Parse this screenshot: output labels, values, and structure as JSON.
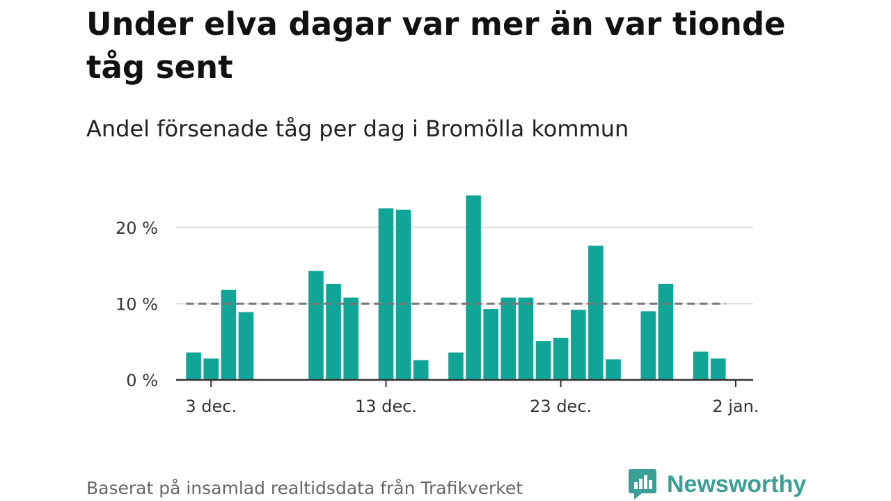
{
  "title": "Under elva dagar var mer än var tionde tåg sent",
  "subtitle": "Andel försenade tåg per dag i Bromölla kommun",
  "source": "Baserat på insamlad realtidsdata från Trafikverket",
  "brand": {
    "name": "Newsworthy",
    "icon": "newsworthy-logo-icon",
    "color": "#3a9f95"
  },
  "colors": {
    "bar": "#10a597",
    "reference": "#777777",
    "grid": "#dddddd",
    "axis": "#333333",
    "text": "#333333"
  },
  "chart_data": {
    "type": "bar",
    "title": "Under elva dagar var mer än var tionde tåg sent",
    "subtitle": "Andel försenade tåg per dag i Bromölla kommun",
    "x_unit": "day",
    "x_ticks": [
      {
        "x": "2023-12-03",
        "label": "3 dec."
      },
      {
        "x": "2023-12-13",
        "label": "13 dec."
      },
      {
        "x": "2023-12-23",
        "label": "23 dec."
      },
      {
        "x": "2024-01-02",
        "label": "2 jan."
      }
    ],
    "xlim": [
      "2023-12-01",
      "2024-01-03"
    ],
    "y_ticks": [
      {
        "value": 0,
        "label": "0 %"
      },
      {
        "value": 10,
        "label": "10 %"
      },
      {
        "value": 20,
        "label": "20 %"
      }
    ],
    "ylim": [
      0,
      25
    ],
    "y_unit": "%",
    "grid": true,
    "reference_line": {
      "value": 10,
      "style": "dashed"
    },
    "series": [
      {
        "points": [
          {
            "x": "2023-12-02",
            "y": 3.6
          },
          {
            "x": "2023-12-03",
            "y": 2.8
          },
          {
            "x": "2023-12-04",
            "y": 11.8
          },
          {
            "x": "2023-12-05",
            "y": 8.9
          },
          {
            "x": "2023-12-09",
            "y": 14.3
          },
          {
            "x": "2023-12-10",
            "y": 12.6
          },
          {
            "x": "2023-12-11",
            "y": 10.8
          },
          {
            "x": "2023-12-13",
            "y": 22.5
          },
          {
            "x": "2023-12-14",
            "y": 22.3
          },
          {
            "x": "2023-12-15",
            "y": 2.6
          },
          {
            "x": "2023-12-17",
            "y": 3.6
          },
          {
            "x": "2023-12-18",
            "y": 24.2
          },
          {
            "x": "2023-12-19",
            "y": 9.3
          },
          {
            "x": "2023-12-20",
            "y": 10.8
          },
          {
            "x": "2023-12-21",
            "y": 10.8
          },
          {
            "x": "2023-12-22",
            "y": 5.1
          },
          {
            "x": "2023-12-23",
            "y": 5.5
          },
          {
            "x": "2023-12-24",
            "y": 9.2
          },
          {
            "x": "2023-12-25",
            "y": 17.6
          },
          {
            "x": "2023-12-26",
            "y": 2.7
          },
          {
            "x": "2023-12-28",
            "y": 9.0
          },
          {
            "x": "2023-12-29",
            "y": 12.6
          },
          {
            "x": "2023-12-31",
            "y": 3.7
          },
          {
            "x": "2024-01-01",
            "y": 2.8
          }
        ]
      }
    ]
  }
}
